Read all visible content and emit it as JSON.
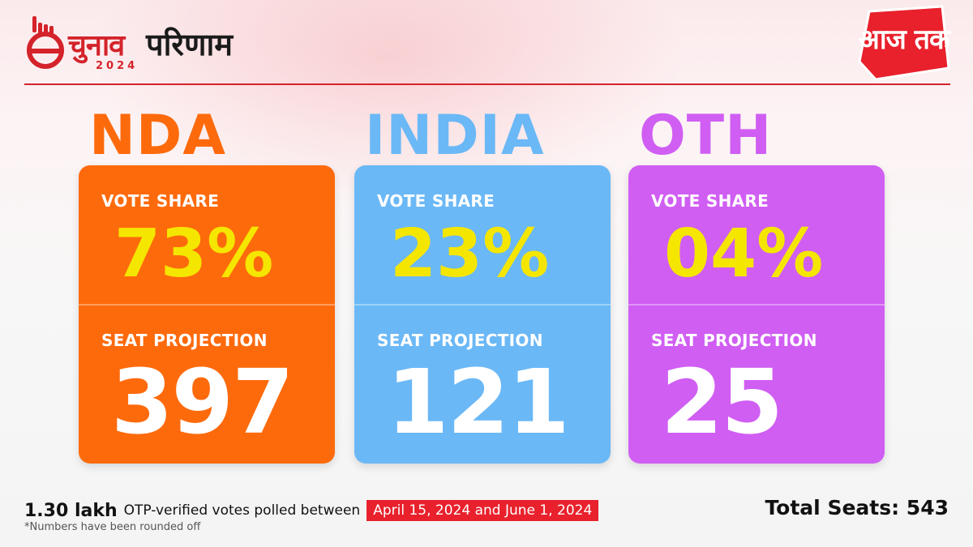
{
  "header": {
    "logo_main": "चुनाव",
    "logo_year": "2024",
    "logo_suffix": "परिणाम",
    "brand": "आज तक"
  },
  "colors": {
    "nda": "#fd6a0c",
    "india": "#6bb8f6",
    "oth": "#d05ef3",
    "vote_value": "#f5e600",
    "accent_red": "#e8212c"
  },
  "parties": [
    {
      "name": "NDA",
      "vote_share_label": "VOTE SHARE",
      "vote_share": "73%",
      "seat_label": "SEAT PROJECTION",
      "seats": "397"
    },
    {
      "name": "INDIA",
      "vote_share_label": "VOTE SHARE",
      "vote_share": "23%",
      "seat_label": "SEAT PROJECTION",
      "seats": "121"
    },
    {
      "name": "OTH",
      "vote_share_label": "VOTE SHARE",
      "vote_share": "04%",
      "seat_label": "SEAT PROJECTION",
      "seats": "25"
    }
  ],
  "footer": {
    "votes_count": "1.30 lakh",
    "votes_text": "OTP-verified votes polled  between",
    "dates": "April 15, 2024 and June 1, 2024",
    "note": "*Numbers have been rounded off",
    "total_seats": "Total Seats: 543"
  }
}
